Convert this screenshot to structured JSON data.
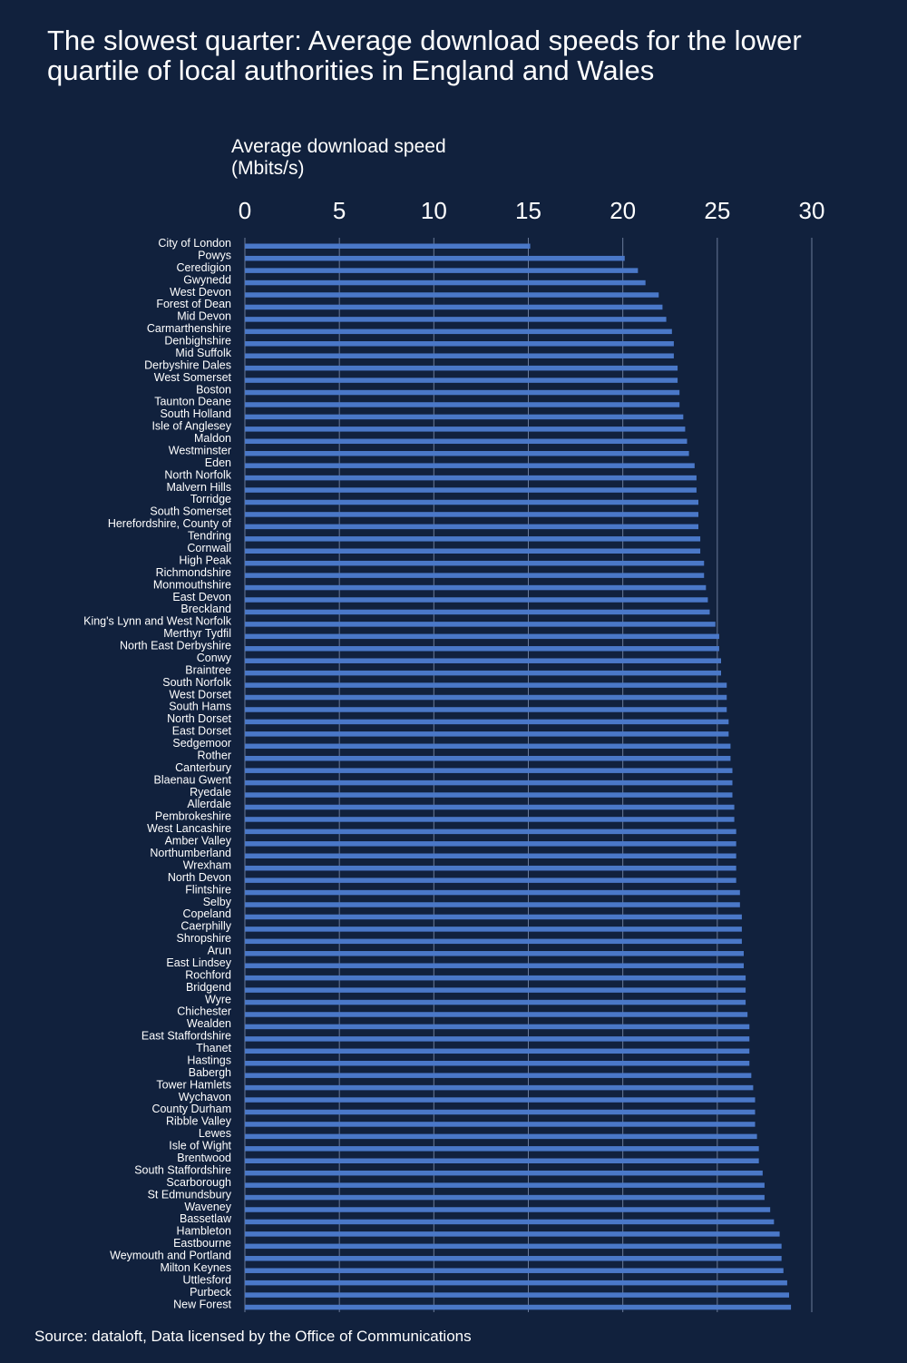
{
  "chart_data": {
    "type": "bar",
    "orientation": "horizontal",
    "title": "The slowest quarter: Average download speeds for the lower quartile of local authorities in England and Wales",
    "xlabel": "Average download speed (Mbits/s)",
    "xlim": [
      0,
      30
    ],
    "xticks": [
      "0",
      "5",
      "10",
      "15",
      "20",
      "25",
      "30"
    ],
    "xaxis_position": "top",
    "grid": true,
    "bar_color": "#4a78c8",
    "background": "#11213d",
    "categories": [
      "City of London",
      "Powys",
      "Ceredigion",
      "Gwynedd",
      "West Devon",
      "Forest of Dean",
      "Mid Devon",
      "Carmarthenshire",
      "Denbighshire",
      "Mid Suffolk",
      "Derbyshire Dales",
      "West Somerset",
      "Boston",
      "Taunton Deane",
      "South Holland",
      "Isle of Anglesey",
      "Maldon",
      "Westminster",
      "Eden",
      "North Norfolk",
      "Malvern Hills",
      "Torridge",
      "South Somerset",
      "Herefordshire, County of",
      "Tendring",
      "Cornwall",
      "High Peak",
      "Richmondshire",
      "Monmouthshire",
      "East Devon",
      "Breckland",
      "King's Lynn and West Norfolk",
      "Merthyr Tydfil",
      "North East Derbyshire",
      "Conwy",
      "Braintree",
      "South Norfolk",
      "West Dorset",
      "South Hams",
      "North Dorset",
      "East Dorset",
      "Sedgemoor",
      "Rother",
      "Canterbury",
      "Blaenau Gwent",
      "Ryedale",
      "Allerdale",
      "Pembrokeshire",
      "West Lancashire",
      "Amber Valley",
      "Northumberland",
      "Wrexham",
      "North Devon",
      "Flintshire",
      "Selby",
      "Copeland",
      "Caerphilly",
      "Shropshire",
      "Arun",
      "East Lindsey",
      "Rochford",
      "Bridgend",
      "Wyre",
      "Chichester",
      "Wealden",
      "East Staffordshire",
      "Thanet",
      "Hastings",
      "Babergh",
      "Tower Hamlets",
      "Wychavon",
      "County Durham",
      "Ribble Valley",
      "Lewes",
      "Isle of Wight",
      "Brentwood",
      "South Staffordshire",
      "Scarborough",
      "St Edmundsbury",
      "Waveney",
      "Bassetlaw",
      "Hambleton",
      "Eastbourne",
      "Weymouth and Portland",
      "Milton Keynes",
      "Uttlesford",
      "Purbeck",
      "New Forest"
    ],
    "values": [
      15.1,
      20.1,
      20.8,
      21.2,
      21.9,
      22.1,
      22.3,
      22.6,
      22.7,
      22.7,
      22.9,
      22.9,
      23.0,
      23.0,
      23.2,
      23.3,
      23.4,
      23.5,
      23.8,
      23.9,
      23.9,
      24.0,
      24.0,
      24.0,
      24.1,
      24.1,
      24.3,
      24.3,
      24.4,
      24.5,
      24.6,
      24.9,
      25.1,
      25.1,
      25.2,
      25.2,
      25.5,
      25.5,
      25.5,
      25.6,
      25.6,
      25.7,
      25.7,
      25.8,
      25.8,
      25.8,
      25.9,
      25.9,
      26.0,
      26.0,
      26.0,
      26.0,
      26.0,
      26.2,
      26.2,
      26.3,
      26.3,
      26.3,
      26.4,
      26.4,
      26.5,
      26.5,
      26.5,
      26.6,
      26.7,
      26.7,
      26.7,
      26.7,
      26.8,
      26.9,
      27.0,
      27.0,
      27.0,
      27.1,
      27.2,
      27.2,
      27.4,
      27.5,
      27.5,
      27.8,
      28.0,
      28.3,
      28.4,
      28.4,
      28.5,
      28.7,
      28.8,
      28.9
    ]
  },
  "source": "Source: dataloft, Data licensed by the Office of Communications"
}
